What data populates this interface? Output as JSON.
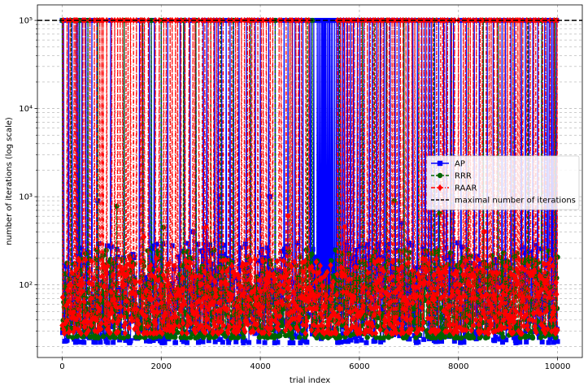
{
  "chart_data": {
    "type": "line",
    "title": "",
    "xlabel": "trial index",
    "ylabel": "number of iterations (log scale)",
    "xlim": [
      -500,
      10500
    ],
    "ylim": [
      15,
      150000
    ],
    "yscale": "log",
    "grid": "both (major and minor)",
    "legend_position": "center-right",
    "x_ticks": [
      0,
      2000,
      4000,
      6000,
      8000,
      10000
    ],
    "x_tick_labels": [
      "0",
      "2000",
      "4000",
      "6000",
      "8000",
      "10000"
    ],
    "y_ticks": [
      100,
      1000,
      10000,
      100000
    ],
    "y_tick_labels": [
      "10²",
      "10³",
      "10⁴",
      "10⁵"
    ],
    "trials": 10000,
    "maximal_iterations": 100000,
    "series": [
      {
        "name": "AP",
        "color": "#0000ff",
        "marker": "square",
        "linestyle": "solid",
        "typical_range": [
          22,
          300
        ],
        "cap_x": [
          0,
          30,
          130,
          200,
          290,
          320,
          350,
          400,
          480,
          520,
          600,
          700,
          980,
          1250,
          1560,
          1630,
          1760,
          1800,
          1860,
          2000,
          2130,
          2380,
          2470,
          2580,
          2700,
          2850,
          2920,
          3080,
          3150,
          3220,
          3310,
          3390,
          3460,
          3570,
          3720,
          3800,
          3900,
          4000,
          4170,
          4300,
          4480,
          4560,
          4650,
          4700,
          4790,
          4860,
          4990,
          5020,
          5080,
          5150,
          5180,
          5210,
          5240,
          5260,
          5280,
          5300,
          5320,
          5350,
          5380,
          5400,
          5430,
          5460,
          5500,
          5540,
          5580,
          5620,
          5660,
          5700,
          5760,
          5820,
          5880,
          5960,
          6010,
          6090,
          6200,
          6260,
          6350,
          6420,
          6500,
          6540,
          6620,
          6720,
          6800,
          6900,
          6980,
          7080,
          7170,
          7260,
          7330,
          7400,
          7450,
          7520,
          7600,
          7700,
          7760,
          7840,
          7900,
          8050,
          8160,
          8320,
          8420,
          8500,
          8580,
          8700,
          8800,
          8880,
          8950,
          9060,
          9130,
          9270,
          9350,
          9420,
          9500,
          9600,
          9680,
          9740,
          9790,
          9830,
          9880,
          9910,
          9950,
          9980
        ],
        "spikes": [
          [
            720,
            900
          ],
          [
            3170,
            1000
          ],
          [
            4190,
            1000
          ],
          [
            2650,
            400
          ],
          [
            6850,
            500
          ],
          [
            9350,
            800
          ]
        ]
      },
      {
        "name": "RRR",
        "color": "#006400",
        "marker": "circle",
        "linestyle": "dashed",
        "typical_range": [
          25,
          250
        ],
        "cap_x": [
          0,
          180,
          350,
          520,
          720,
          1250,
          1630,
          1800,
          2000,
          2450,
          2700,
          3000,
          3200,
          3450,
          3800,
          4300,
          4600,
          4950,
          5050,
          5600,
          6060,
          6300,
          6550,
          6900,
          7200,
          7500,
          7860,
          8200,
          8500,
          8800,
          9100,
          9400,
          9680,
          9950
        ],
        "spikes": [
          [
            0,
            280
          ],
          [
            1100,
            780
          ],
          [
            6700,
            900
          ],
          [
            7620,
            650
          ],
          [
            2040,
            450
          ],
          [
            8180,
            250
          ]
        ]
      },
      {
        "name": "RAAR",
        "color": "#ff0000",
        "marker": "diamond",
        "linestyle": "dashdot",
        "typical_range": [
          28,
          200
        ],
        "cap_x": [
          20,
          100,
          160,
          240,
          270,
          300,
          420,
          460,
          560,
          650,
          700,
          760,
          800,
          830,
          900,
          1000,
          1060,
          1120,
          1170,
          1220,
          1290,
          1330,
          1380,
          1440,
          1500,
          1580,
          1610,
          1660,
          1740,
          1880,
          1960,
          2050,
          2100,
          2180,
          2220,
          2290,
          2330,
          2400,
          2480,
          2560,
          2640,
          2680,
          2760,
          2830,
          2880,
          2950,
          3000,
          3060,
          3120,
          3180,
          3250,
          3360,
          3420,
          3500,
          3540,
          3620,
          3680,
          3740,
          3780,
          3830,
          3880,
          3950,
          4020,
          4060,
          4120,
          4200,
          4250,
          4380,
          4420,
          4520,
          4600,
          4640,
          4720,
          4770,
          4830,
          4920,
          4980,
          5560,
          5620,
          5680,
          5740,
          5790,
          5850,
          5900,
          5970,
          6040,
          6100,
          6160,
          6220,
          6280,
          6320,
          6380,
          6440,
          6480,
          6560,
          6600,
          6660,
          6700,
          6760,
          6830,
          6880,
          6940,
          7000,
          7060,
          7120,
          7200,
          7250,
          7300,
          7360,
          7420,
          7480,
          7560,
          7640,
          7680,
          7720,
          7780,
          7860,
          7920,
          8000,
          8100,
          8140,
          8200,
          8240,
          8300,
          8360,
          8440,
          8480,
          8560,
          8620,
          8660,
          8720,
          8780,
          8840,
          8920,
          8990,
          9040,
          9100,
          9160,
          9200,
          9240,
          9300,
          9380,
          9450,
          9520,
          9560,
          9620,
          9700,
          9760,
          9850,
          9930,
          9990
        ],
        "spikes": [
          [
            700,
            600
          ],
          [
            1650,
            350
          ],
          [
            2900,
            450
          ],
          [
            3250,
            550
          ],
          [
            4560,
            600
          ],
          [
            5700,
            450
          ],
          [
            8520,
            400
          ]
        ]
      },
      {
        "name": "maximal number of iterations",
        "color": "#000000",
        "marker": "none",
        "linestyle": "dashed",
        "value": 100000
      }
    ]
  }
}
